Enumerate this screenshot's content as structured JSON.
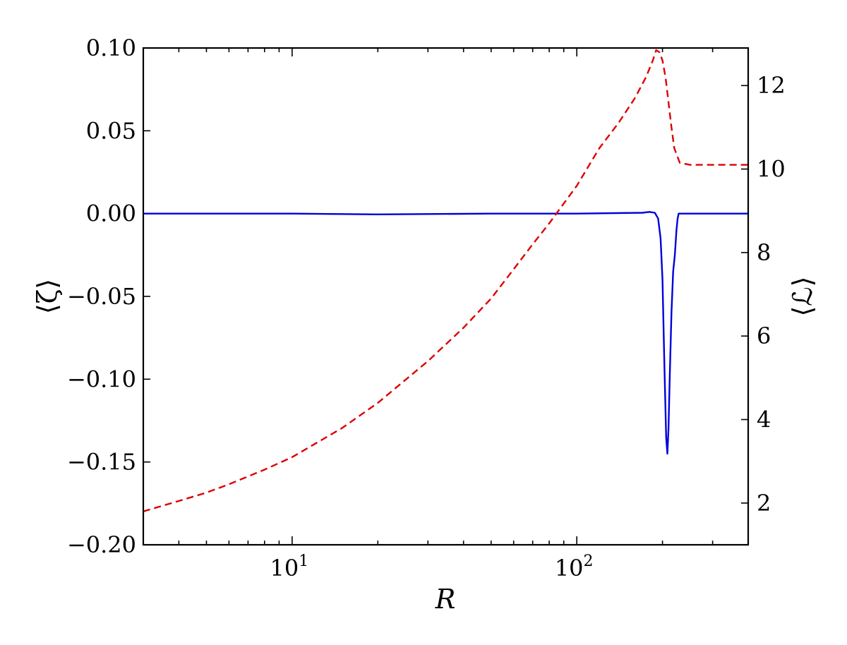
{
  "chart_data": {
    "type": "line",
    "xscale": "log",
    "xlim": [
      3,
      400
    ],
    "xlabel": "R",
    "x_ticks": [
      {
        "value": 10,
        "base": "10",
        "exp": "1"
      },
      {
        "value": 100,
        "base": "10",
        "exp": "2"
      }
    ],
    "left_axis": {
      "label": "⟨ζ⟩",
      "ylim": [
        -0.2,
        0.1
      ],
      "ticks": [
        {
          "value": 0.1,
          "label": "0.10"
        },
        {
          "value": 0.05,
          "label": "0.05"
        },
        {
          "value": 0.0,
          "label": "0.00"
        },
        {
          "value": -0.05,
          "label": "−0.05"
        },
        {
          "value": -0.1,
          "label": "−0.10"
        },
        {
          "value": -0.15,
          "label": "−0.15"
        },
        {
          "value": -0.2,
          "label": "−0.20"
        }
      ]
    },
    "right_axis": {
      "label": "⟨ℒ⟩",
      "ylim": [
        1,
        12.9
      ],
      "ticks": [
        {
          "value": 2,
          "label": "2"
        },
        {
          "value": 4,
          "label": "4"
        },
        {
          "value": 6,
          "label": "6"
        },
        {
          "value": 8,
          "label": "8"
        },
        {
          "value": 10,
          "label": "10"
        },
        {
          "value": 12,
          "label": "12"
        }
      ]
    },
    "series": [
      {
        "axis": "left",
        "style": "solid",
        "color": "#0000dd",
        "x": [
          3,
          10,
          20,
          50,
          100,
          170,
          180,
          188,
          193,
          197,
          200,
          203,
          206,
          208,
          210,
          212,
          215,
          218,
          221,
          224,
          226,
          228,
          230,
          240,
          300,
          400
        ],
        "y": [
          0,
          0,
          -0.0005,
          0,
          0,
          0.0005,
          0.001,
          0.0005,
          -0.003,
          -0.015,
          -0.04,
          -0.09,
          -0.135,
          -0.145,
          -0.13,
          -0.1,
          -0.06,
          -0.035,
          -0.025,
          -0.01,
          -0.003,
          0,
          0,
          0,
          0,
          0
        ]
      },
      {
        "axis": "right",
        "style": "dashed",
        "color": "#dd0000",
        "x": [
          3,
          4,
          5,
          6,
          8,
          10,
          15,
          20,
          30,
          40,
          50,
          60,
          70,
          80,
          100,
          120,
          140,
          160,
          175,
          185,
          190,
          195,
          200,
          205,
          210,
          215,
          220,
          230,
          250,
          300,
          400
        ],
        "y": [
          1.8,
          2.05,
          2.25,
          2.45,
          2.8,
          3.1,
          3.8,
          4.4,
          5.4,
          6.2,
          6.9,
          7.6,
          8.2,
          8.7,
          9.6,
          10.5,
          11.1,
          11.7,
          12.2,
          12.6,
          12.85,
          12.8,
          12.6,
          12.2,
          11.6,
          11.0,
          10.5,
          10.15,
          10.1,
          10.1,
          10.1
        ]
      }
    ]
  }
}
